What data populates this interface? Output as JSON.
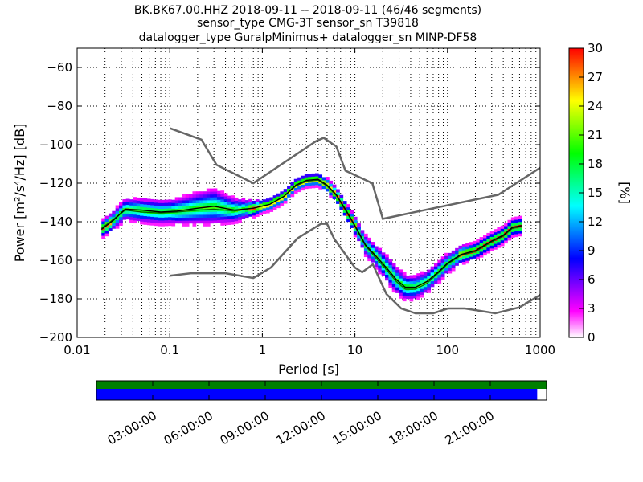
{
  "chart_data": {
    "type": "heatmap",
    "title_lines": [
      "BK.BK67.00.HHZ   2018-09-11 -- 2018-09-11  (46/46 segments)",
      "sensor_type CMG-3T sensor_sn T39818",
      "datalogger_type GuralpMinimus+ datalogger_sn MINP-DF58"
    ],
    "xlabel": "Period [s]",
    "ylabel": "Power [m²/s⁴/Hz] [dB]",
    "x_scale": "log",
    "xlim": [
      0.01,
      1000
    ],
    "ylim": [
      -200,
      -50
    ],
    "x_ticks": [
      0.01,
      0.1,
      1,
      10,
      100,
      1000
    ],
    "x_tick_labels": [
      "0.01",
      "0.1",
      "1",
      "10",
      "100",
      "1000"
    ],
    "y_ticks": [
      -200,
      -180,
      -160,
      -140,
      -120,
      -100,
      -80,
      -60
    ],
    "y_tick_labels": [
      "−200",
      "−180",
      "−160",
      "−140",
      "−120",
      "−100",
      "−80",
      "−60"
    ],
    "grid": true,
    "colorbar": {
      "label": "[%]",
      "range": [
        0,
        30
      ],
      "ticks": [
        0,
        3,
        6,
        9,
        12,
        15,
        18,
        21,
        24,
        27,
        30
      ],
      "tick_labels": [
        "0",
        "3",
        "6",
        "9",
        "12",
        "15",
        "18",
        "21",
        "24",
        "27",
        "30"
      ],
      "colormap": [
        "#ffffff",
        "#ff00ff",
        "#8000ff",
        "#0000ff",
        "#0080ff",
        "#00ffff",
        "#00ff80",
        "#00ff00",
        "#80ff00",
        "#ffff00",
        "#ff8000",
        "#ff0000"
      ]
    },
    "nhnm": {
      "name": "NHNM",
      "color": "#666666",
      "points": [
        [
          0.1,
          -91.5
        ],
        [
          0.22,
          -97.4
        ],
        [
          0.32,
          -110.5
        ],
        [
          0.8,
          -120
        ],
        [
          3.8,
          -98.2
        ],
        [
          4.6,
          -96.5
        ],
        [
          6.3,
          -101
        ],
        [
          7.9,
          -113.5
        ],
        [
          15.4,
          -120
        ],
        [
          20,
          -138.5
        ],
        [
          354,
          -126
        ],
        [
          1000,
          -112
        ]
      ]
    },
    "nlnm": {
      "name": "NLNM",
      "color": "#666666",
      "points": [
        [
          0.1,
          -168
        ],
        [
          0.17,
          -166.7
        ],
        [
          0.4,
          -166.7
        ],
        [
          0.8,
          -169.2
        ],
        [
          1.24,
          -163.7
        ],
        [
          2.4,
          -148.6
        ],
        [
          4.3,
          -141.1
        ],
        [
          5,
          -141.1
        ],
        [
          6,
          -149
        ],
        [
          10,
          -163.8
        ],
        [
          12,
          -166.2
        ],
        [
          15.6,
          -162.1
        ],
        [
          21.9,
          -177.5
        ],
        [
          31.6,
          -185
        ],
        [
          45,
          -187.5
        ],
        [
          70,
          -187.5
        ],
        [
          101,
          -185
        ],
        [
          154,
          -185
        ],
        [
          328,
          -187.5
        ],
        [
          600,
          -184.4
        ],
        [
          1000,
          -178
        ]
      ]
    },
    "mode_line": {
      "name": "mode",
      "color": "#000000",
      "points": [
        [
          0.0183,
          -144
        ],
        [
          0.025,
          -139
        ],
        [
          0.033,
          -133.5
        ],
        [
          0.05,
          -134
        ],
        [
          0.08,
          -135
        ],
        [
          0.12,
          -134.5
        ],
        [
          0.2,
          -133
        ],
        [
          0.3,
          -132
        ],
        [
          0.5,
          -134
        ],
        [
          0.8,
          -133
        ],
        [
          1.2,
          -131
        ],
        [
          1.7,
          -127
        ],
        [
          2.3,
          -121
        ],
        [
          3,
          -118.5
        ],
        [
          4,
          -118
        ],
        [
          5,
          -121
        ],
        [
          6.3,
          -126
        ],
        [
          8,
          -134
        ],
        [
          10,
          -142
        ],
        [
          13,
          -152
        ],
        [
          17,
          -158
        ],
        [
          22,
          -164
        ],
        [
          28,
          -170
        ],
        [
          35,
          -174
        ],
        [
          45,
          -174
        ],
        [
          60,
          -171
        ],
        [
          80,
          -166
        ],
        [
          100,
          -161.5
        ],
        [
          140,
          -157
        ],
        [
          200,
          -155
        ],
        [
          300,
          -150
        ],
        [
          400,
          -147
        ],
        [
          500,
          -143
        ],
        [
          630,
          -142
        ]
      ]
    },
    "mean_line": {
      "name": "mean",
      "color": "#006400",
      "points": [
        [
          0.0183,
          -143.5
        ],
        [
          0.025,
          -138.5
        ],
        [
          0.033,
          -134
        ],
        [
          0.05,
          -135
        ],
        [
          0.08,
          -135.5
        ],
        [
          0.12,
          -135
        ],
        [
          0.2,
          -134
        ],
        [
          0.3,
          -133.5
        ],
        [
          0.5,
          -134.5
        ],
        [
          0.8,
          -133
        ],
        [
          1.2,
          -131
        ],
        [
          1.7,
          -127
        ],
        [
          2.3,
          -121.5
        ],
        [
          3,
          -119
        ],
        [
          4,
          -118.5
        ],
        [
          5,
          -121.5
        ],
        [
          6.3,
          -126.5
        ],
        [
          8,
          -134.5
        ],
        [
          10,
          -142.5
        ],
        [
          13,
          -152.5
        ],
        [
          17,
          -159
        ],
        [
          22,
          -165
        ],
        [
          28,
          -171
        ],
        [
          35,
          -175
        ],
        [
          45,
          -175
        ],
        [
          60,
          -172
        ],
        [
          80,
          -166.5
        ],
        [
          100,
          -162
        ],
        [
          140,
          -157.5
        ],
        [
          200,
          -155.5
        ],
        [
          300,
          -150.5
        ],
        [
          400,
          -147.5
        ],
        [
          500,
          -143.5
        ],
        [
          630,
          -142.5
        ]
      ]
    },
    "density_band": {
      "description_of_spread_in_dB": "half-width of the probability band around the mode line",
      "points": [
        [
          0.0183,
          3
        ],
        [
          0.05,
          5
        ],
        [
          0.1,
          5
        ],
        [
          0.2,
          7
        ],
        [
          0.3,
          8
        ],
        [
          0.5,
          5
        ],
        [
          1,
          2
        ],
        [
          2,
          2
        ],
        [
          4,
          2
        ],
        [
          8,
          3
        ],
        [
          15,
          4
        ],
        [
          25,
          6
        ],
        [
          40,
          5
        ],
        [
          80,
          4
        ],
        [
          200,
          3
        ],
        [
          630,
          3
        ]
      ]
    },
    "timeline": {
      "tick_labels": [
        "03:00:00",
        "06:00:00",
        "09:00:00",
        "12:00:00",
        "15:00:00",
        "18:00:00",
        "21:00:00"
      ],
      "range_hours": [
        0,
        24
      ],
      "data_coverage_end_hours": 23.5,
      "data_color": "#007f00",
      "segment_color": "#0000ff"
    }
  }
}
